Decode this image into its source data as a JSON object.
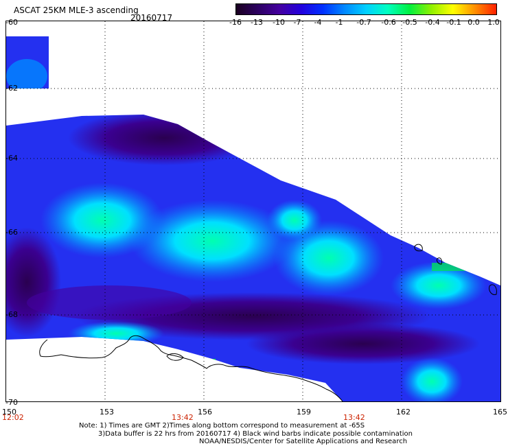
{
  "header": {
    "title": "ASCAT 25KM MLE-3 ascending",
    "date": "20160717"
  },
  "colorbar": {
    "labels": [
      "-16",
      "-13",
      "-10",
      "-7",
      "-4",
      "-1",
      "-0.7",
      "-0.6",
      "-0.5",
      "-0.4",
      "-0.1",
      "0.0",
      "1.0"
    ],
    "colors": [
      "#1a0020",
      "#2c0060",
      "#4400a0",
      "#2200dd",
      "#0030ff",
      "#0088ff",
      "#00d0ff",
      "#00ffc0",
      "#00f040",
      "#90f000",
      "#ffff00",
      "#ff9000",
      "#ff2000"
    ]
  },
  "axes": {
    "lat_labels": [
      "-60",
      "-62",
      "-64",
      "-66",
      "-68",
      "-70"
    ],
    "lon_labels": [
      "150",
      "153",
      "156",
      "159",
      "162",
      "165"
    ]
  },
  "times": {
    "left": "12:02",
    "mid1": "13:42",
    "mid2": "13:42"
  },
  "notes": {
    "line1": "Note: 1) Times are GMT 2)Times along bottom correspond to measurement at -65S",
    "line2": "3)Data buffer is 22 hrs from 20160717 4) Black wind barbs indicate possible contamination",
    "line3": "NOAA/NESDIS/Center for Satellite Applications and Research"
  }
}
